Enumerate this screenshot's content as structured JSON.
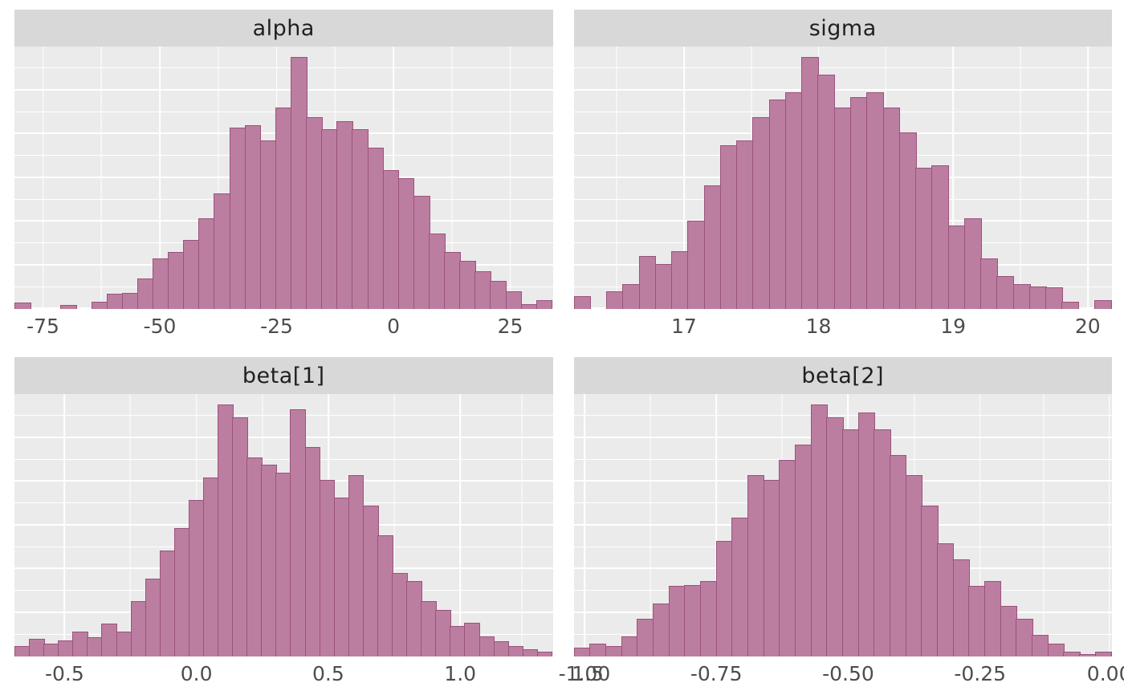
{
  "colors": {
    "bar_fill": "#bc7ea0",
    "bar_border": "#9b527b",
    "panel_bg": "#ebebeb",
    "strip_bg": "#d8d8d8",
    "grid": "#ffffff",
    "axis_text": "#4d4d4d",
    "strip_text": "#1f1f1f"
  },
  "chart_data": [
    {
      "type": "bar",
      "subtype": "histogram",
      "title": "alpha",
      "xlabel": "",
      "ylabel": "",
      "xlim": [
        -81,
        34
      ],
      "grid": true,
      "x_ticks": [
        {
          "label": "-75",
          "pos": 0.053
        },
        {
          "label": "-50",
          "pos": 0.27
        },
        {
          "label": "-25",
          "pos": 0.487
        },
        {
          "label": "0",
          "pos": 0.704
        },
        {
          "label": "25",
          "pos": 0.921
        }
      ],
      "bin_heights": [
        0.025,
        0,
        0,
        0.015,
        0,
        0.03,
        0.06,
        0.065,
        0.12,
        0.2,
        0.225,
        0.275,
        0.36,
        0.46,
        0.72,
        0.73,
        0.67,
        0.8,
        1.0,
        0.76,
        0.715,
        0.745,
        0.715,
        0.64,
        0.55,
        0.52,
        0.45,
        0.3,
        0.225,
        0.19,
        0.15,
        0.11,
        0.07,
        0.02,
        0.035
      ]
    },
    {
      "type": "bar",
      "subtype": "histogram",
      "title": "sigma",
      "xlabel": "",
      "ylabel": "",
      "xlim": [
        16.2,
        20.2
      ],
      "grid": true,
      "x_ticks": [
        {
          "label": "17",
          "pos": 0.205
        },
        {
          "label": "18",
          "pos": 0.455
        },
        {
          "label": "19",
          "pos": 0.705
        },
        {
          "label": "20",
          "pos": 0.955
        }
      ],
      "bin_heights": [
        0.05,
        0,
        0.07,
        0.1,
        0.21,
        0.18,
        0.23,
        0.35,
        0.49,
        0.65,
        0.67,
        0.76,
        0.83,
        0.86,
        1.0,
        0.93,
        0.8,
        0.84,
        0.86,
        0.8,
        0.7,
        0.56,
        0.57,
        0.33,
        0.36,
        0.2,
        0.13,
        0.1,
        0.09,
        0.085,
        0.03,
        0,
        0.035
      ]
    },
    {
      "type": "bar",
      "subtype": "histogram",
      "title": "beta[1]",
      "xlabel": "",
      "ylabel": "",
      "xlim": [
        -0.69,
        1.35
      ],
      "grid": true,
      "x_ticks": [
        {
          "label": "-0.5",
          "pos": 0.093
        },
        {
          "label": "0.0",
          "pos": 0.338
        },
        {
          "label": "0.5",
          "pos": 0.583
        },
        {
          "label": "1.0",
          "pos": 0.828
        },
        {
          "label": "1.5",
          "pos": 1.065
        }
      ],
      "bin_heights": [
        0.04,
        0.07,
        0.05,
        0.065,
        0.1,
        0.075,
        0.13,
        0.1,
        0.22,
        0.31,
        0.42,
        0.51,
        0.62,
        0.71,
        1.0,
        0.95,
        0.79,
        0.76,
        0.73,
        0.98,
        0.83,
        0.7,
        0.63,
        0.72,
        0.6,
        0.48,
        0.33,
        0.3,
        0.22,
        0.185,
        0.12,
        0.135,
        0.08,
        0.06,
        0.04,
        0.03,
        0.02
      ]
    },
    {
      "type": "bar",
      "subtype": "histogram",
      "title": "beta[2]",
      "xlabel": "",
      "ylabel": "",
      "xlim": [
        -1.02,
        0.01
      ],
      "grid": true,
      "x_ticks": [
        {
          "label": "-1.00",
          "pos": 0.02
        },
        {
          "label": "-0.75",
          "pos": 0.265
        },
        {
          "label": "-0.50",
          "pos": 0.51
        },
        {
          "label": "-0.25",
          "pos": 0.755
        },
        {
          "label": "0.00",
          "pos": 0.995
        }
      ],
      "bin_heights": [
        0.035,
        0.05,
        0.04,
        0.08,
        0.15,
        0.21,
        0.28,
        0.285,
        0.3,
        0.46,
        0.55,
        0.72,
        0.7,
        0.78,
        0.84,
        1.0,
        0.95,
        0.9,
        0.97,
        0.9,
        0.8,
        0.72,
        0.6,
        0.45,
        0.385,
        0.28,
        0.3,
        0.2,
        0.15,
        0.085,
        0.05,
        0.02,
        0.01,
        0.02
      ]
    }
  ]
}
